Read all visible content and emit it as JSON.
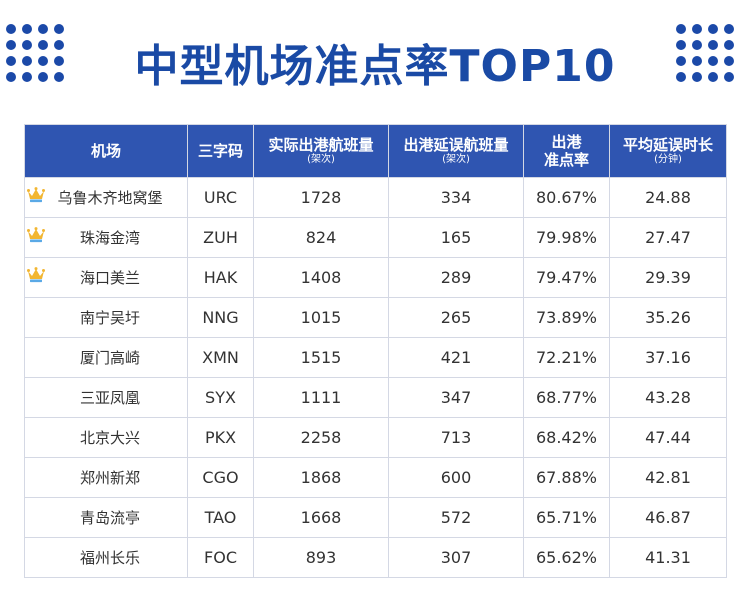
{
  "title": "中型机场准点率TOP10",
  "headers": {
    "airport": "机场",
    "code": "三字码",
    "flights": "实际出港航班量",
    "flights_unit": "(架次)",
    "delays": "出港延误航班量",
    "delays_unit": "(架次)",
    "rate_line1": "出港",
    "rate_line2": "准点率",
    "avg": "平均延误时长",
    "avg_unit": "(分钟)"
  },
  "rows": [
    {
      "name": "乌鲁木齐地窝堡",
      "code": "URC",
      "flights": "1728",
      "delays": "334",
      "rate": "80.67%",
      "avg": "24.88",
      "crown": true
    },
    {
      "name": "珠海金湾",
      "code": "ZUH",
      "flights": "824",
      "delays": "165",
      "rate": "79.98%",
      "avg": "27.47",
      "crown": true
    },
    {
      "name": "海口美兰",
      "code": "HAK",
      "flights": "1408",
      "delays": "289",
      "rate": "79.47%",
      "avg": "29.39",
      "crown": true
    },
    {
      "name": "南宁吴圩",
      "code": "NNG",
      "flights": "1015",
      "delays": "265",
      "rate": "73.89%",
      "avg": "35.26",
      "crown": false
    },
    {
      "name": "厦门高崎",
      "code": "XMN",
      "flights": "1515",
      "delays": "421",
      "rate": "72.21%",
      "avg": "37.16",
      "crown": false
    },
    {
      "name": "三亚凤凰",
      "code": "SYX",
      "flights": "1111",
      "delays": "347",
      "rate": "68.77%",
      "avg": "43.28",
      "crown": false
    },
    {
      "name": "北京大兴",
      "code": "PKX",
      "flights": "2258",
      "delays": "713",
      "rate": "68.42%",
      "avg": "47.44",
      "crown": false
    },
    {
      "name": "郑州新郑",
      "code": "CGO",
      "flights": "1868",
      "delays": "600",
      "rate": "67.88%",
      "avg": "42.81",
      "crown": false
    },
    {
      "name": "青岛流亭",
      "code": "TAO",
      "flights": "1668",
      "delays": "572",
      "rate": "65.71%",
      "avg": "46.87",
      "crown": false
    },
    {
      "name": "福州长乐",
      "code": "FOC",
      "flights": "893",
      "delays": "307",
      "rate": "65.62%",
      "avg": "41.31",
      "crown": false
    }
  ],
  "colors": {
    "accent": "#1a4aa5",
    "header_bg": "#2f55b1",
    "crown_gold": "#f2b632"
  }
}
